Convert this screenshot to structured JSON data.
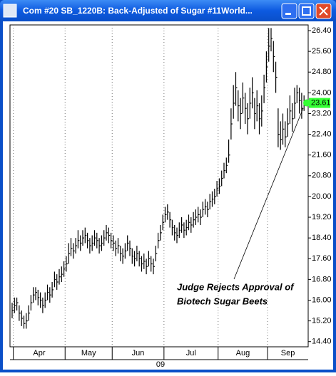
{
  "chart_data": {
    "type": "hlc",
    "title": "Com #20 SB_1220B: Back-Adjusted of Sugar #11World...",
    "high": [
      15.9,
      16.1,
      16.1,
      15.8,
      15.6,
      15.4,
      15.5,
      15.8,
      16.2,
      16.5,
      16.5,
      16.4,
      16.3,
      16.1,
      16.3,
      16.6,
      16.5,
      16.7,
      17.1,
      17.0,
      17.2,
      17.3,
      17.5,
      17.7,
      18.2,
      18.4,
      18.2,
      18.4,
      18.7,
      18.5,
      18.7,
      18.8,
      18.6,
      18.4,
      18.5,
      18.7,
      18.6,
      18.4,
      18.5,
      18.7,
      18.9,
      18.8,
      18.6,
      18.5,
      18.3,
      18.4,
      18.1,
      18.0,
      18.2,
      18.5,
      18.3,
      18.0,
      17.9,
      18.1,
      17.9,
      17.7,
      17.8,
      17.6,
      17.9,
      17.7,
      17.6,
      18.1,
      18.6,
      18.9,
      19.3,
      19.6,
      19.7,
      19.4,
      19.1,
      18.9,
      18.8,
      19.0,
      19.2,
      19.0,
      19.1,
      19.3,
      19.2,
      19.4,
      19.5,
      19.6,
      19.5,
      19.8,
      19.9,
      19.8,
      20.1,
      20.2,
      20.3,
      20.6,
      20.7,
      21.0,
      21.3,
      21.5,
      22.2,
      23.4,
      24.3,
      24.8,
      24.1,
      23.8,
      24.4,
      24.0,
      23.6,
      24.2,
      24.6,
      23.8,
      24.1,
      23.6,
      23.9,
      24.7,
      25.6,
      26.5,
      26.5,
      26.0,
      25.2,
      23.4,
      22.9,
      23.2,
      22.9,
      23.4,
      23.9,
      23.6,
      24.2,
      24.3,
      24.2,
      24.0,
      23.9
    ],
    "low": [
      15.3,
      15.5,
      15.6,
      15.2,
      15.0,
      14.9,
      14.9,
      15.2,
      15.6,
      15.9,
      16.0,
      15.8,
      15.7,
      15.5,
      15.7,
      16.0,
      15.9,
      16.1,
      16.5,
      16.4,
      16.6,
      16.7,
      16.9,
      17.1,
      17.4,
      17.7,
      17.6,
      17.8,
      18.0,
      17.9,
      18.1,
      18.2,
      18.0,
      17.8,
      17.9,
      18.1,
      18.0,
      17.8,
      17.9,
      18.1,
      18.3,
      18.2,
      18.0,
      17.9,
      17.7,
      17.8,
      17.5,
      17.4,
      17.6,
      17.9,
      17.7,
      17.4,
      17.3,
      17.5,
      17.3,
      17.1,
      17.2,
      17.0,
      17.3,
      17.1,
      17.0,
      17.5,
      18.0,
      18.3,
      18.7,
      19.0,
      19.1,
      18.8,
      18.5,
      18.3,
      18.2,
      18.4,
      18.6,
      18.4,
      18.5,
      18.7,
      18.6,
      18.8,
      18.9,
      19.0,
      18.9,
      19.2,
      19.3,
      19.2,
      19.5,
      19.6,
      19.7,
      20.0,
      20.1,
      20.4,
      20.7,
      20.9,
      21.3,
      22.2,
      23.0,
      23.5,
      22.9,
      22.6,
      23.2,
      22.8,
      22.4,
      23.0,
      23.4,
      22.6,
      22.9,
      22.4,
      22.7,
      23.6,
      24.4,
      25.2,
      25.6,
      24.8,
      24.0,
      21.9,
      21.8,
      22.0,
      21.9,
      22.3,
      22.8,
      22.5,
      23.0,
      23.6,
      23.2,
      23.0,
      23.3
    ],
    "close": [
      15.6,
      15.8,
      15.9,
      15.5,
      15.3,
      15.1,
      15.2,
      15.5,
      15.9,
      16.2,
      16.3,
      16.1,
      16.0,
      15.8,
      16.0,
      16.3,
      16.2,
      16.4,
      16.8,
      16.7,
      16.9,
      17.0,
      17.2,
      17.4,
      17.8,
      18.0,
      17.9,
      18.1,
      18.3,
      18.2,
      18.4,
      18.5,
      18.3,
      18.1,
      18.2,
      18.4,
      18.3,
      18.1,
      18.2,
      18.4,
      18.6,
      18.5,
      18.3,
      18.2,
      18.0,
      18.1,
      17.8,
      17.7,
      17.9,
      18.2,
      18.0,
      17.7,
      17.6,
      17.8,
      17.6,
      17.4,
      17.5,
      17.3,
      17.6,
      17.4,
      17.3,
      17.8,
      18.3,
      18.6,
      19.0,
      19.3,
      19.4,
      19.1,
      18.8,
      18.6,
      18.5,
      18.7,
      18.9,
      18.7,
      18.8,
      19.0,
      18.9,
      19.1,
      19.2,
      19.3,
      19.2,
      19.5,
      19.6,
      19.5,
      19.8,
      19.9,
      20.0,
      20.3,
      20.4,
      20.7,
      21.0,
      21.2,
      21.6,
      22.8,
      23.6,
      24.2,
      23.5,
      23.2,
      23.8,
      23.4,
      23.0,
      23.6,
      24.0,
      23.2,
      23.5,
      23.0,
      23.3,
      24.2,
      25.0,
      25.8,
      26.1,
      25.4,
      24.6,
      22.4,
      22.2,
      22.6,
      22.3,
      22.8,
      23.3,
      23.0,
      23.6,
      24.0,
      23.7,
      23.4,
      23.61
    ],
    "color": "#000000",
    "last_price_color": "#33ff33",
    "ylim": [
      14.2,
      26.62
    ],
    "yticks": [
      {
        "value": 14.4,
        "label": "14.40"
      },
      {
        "value": 15.2,
        "label": "15.20"
      },
      {
        "value": 16.0,
        "label": "16.00"
      },
      {
        "value": 16.8,
        "label": "16.80"
      },
      {
        "value": 17.6,
        "label": "17.60"
      },
      {
        "value": 18.4,
        "label": "18.40"
      },
      {
        "value": 19.2,
        "label": "19.20"
      },
      {
        "value": 20.0,
        "label": "20.00"
      },
      {
        "value": 20.8,
        "label": "20.80"
      },
      {
        "value": 21.6,
        "label": "21.60"
      },
      {
        "value": 22.4,
        "label": "22.40"
      },
      {
        "value": 23.2,
        "label": "23.20"
      },
      {
        "value": 24.0,
        "label": "24.00"
      },
      {
        "value": 24.8,
        "label": "24.80"
      },
      {
        "value": 25.6,
        "label": "25.60"
      },
      {
        "value": 26.4,
        "label": "26.40"
      }
    ],
    "xticks": [
      {
        "value": 1,
        "label": "Apr"
      },
      {
        "value": 23,
        "label": "May"
      },
      {
        "value": 43,
        "label": "Jun"
      },
      {
        "value": 65,
        "label": "Jul"
      },
      {
        "value": 88,
        "label": "Aug"
      },
      {
        "value": 109,
        "label": "Sep"
      }
    ],
    "x_sublabel": "09",
    "annotation": [
      "Judge Rejects Approval of",
      "Biotech Sugar Beets"
    ]
  }
}
